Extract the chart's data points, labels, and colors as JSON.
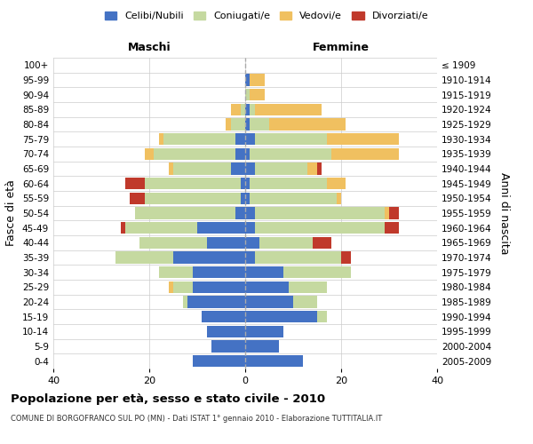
{
  "age_groups": [
    "0-4",
    "5-9",
    "10-14",
    "15-19",
    "20-24",
    "25-29",
    "30-34",
    "35-39",
    "40-44",
    "45-49",
    "50-54",
    "55-59",
    "60-64",
    "65-69",
    "70-74",
    "75-79",
    "80-84",
    "85-89",
    "90-94",
    "95-99",
    "100+"
  ],
  "birth_years": [
    "2005-2009",
    "2000-2004",
    "1995-1999",
    "1990-1994",
    "1985-1989",
    "1980-1984",
    "1975-1979",
    "1970-1974",
    "1965-1969",
    "1960-1964",
    "1955-1959",
    "1950-1954",
    "1945-1949",
    "1940-1944",
    "1935-1939",
    "1930-1934",
    "1925-1929",
    "1920-1924",
    "1915-1919",
    "1910-1914",
    "≤ 1909"
  ],
  "male": {
    "celibi": [
      11,
      7,
      8,
      9,
      12,
      11,
      11,
      15,
      8,
      10,
      2,
      1,
      1,
      3,
      2,
      2,
      0,
      0,
      0,
      0,
      0
    ],
    "coniugati": [
      0,
      0,
      0,
      0,
      1,
      4,
      7,
      12,
      14,
      15,
      21,
      20,
      20,
      12,
      17,
      15,
      3,
      1,
      0,
      0,
      0
    ],
    "vedovi": [
      0,
      0,
      0,
      0,
      0,
      1,
      0,
      0,
      0,
      0,
      0,
      0,
      0,
      1,
      2,
      1,
      1,
      2,
      0,
      0,
      0
    ],
    "divorziati": [
      0,
      0,
      0,
      0,
      0,
      0,
      0,
      0,
      0,
      1,
      0,
      3,
      4,
      0,
      0,
      0,
      0,
      0,
      0,
      0,
      0
    ]
  },
  "female": {
    "nubili": [
      12,
      7,
      8,
      15,
      10,
      9,
      8,
      2,
      3,
      2,
      2,
      1,
      1,
      2,
      1,
      2,
      1,
      1,
      0,
      1,
      0
    ],
    "coniugate": [
      0,
      0,
      0,
      2,
      5,
      8,
      14,
      18,
      11,
      27,
      27,
      18,
      16,
      11,
      17,
      15,
      4,
      1,
      1,
      0,
      0
    ],
    "vedove": [
      0,
      0,
      0,
      0,
      0,
      0,
      0,
      0,
      0,
      0,
      1,
      1,
      4,
      2,
      14,
      15,
      16,
      14,
      3,
      3,
      0
    ],
    "divorziate": [
      0,
      0,
      0,
      0,
      0,
      0,
      0,
      2,
      4,
      3,
      2,
      0,
      0,
      1,
      0,
      0,
      0,
      0,
      0,
      0,
      0
    ]
  },
  "color_celibi": "#4472c4",
  "color_coniugati": "#c5d9a0",
  "color_vedovi": "#f0c060",
  "color_divorziati": "#c0392b",
  "title": "Popolazione per età, sesso e stato civile - 2010",
  "subtitle": "COMUNE DI BORGOFRANCO SUL PO (MN) - Dati ISTAT 1° gennaio 2010 - Elaborazione TUTTITALIA.IT",
  "xlabel_left": "Maschi",
  "xlabel_right": "Femmine",
  "ylabel_left": "Fasce di età",
  "ylabel_right": "Anni di nascita",
  "xlim": 40,
  "bg_color": "#ffffff",
  "grid_color": "#cccccc"
}
